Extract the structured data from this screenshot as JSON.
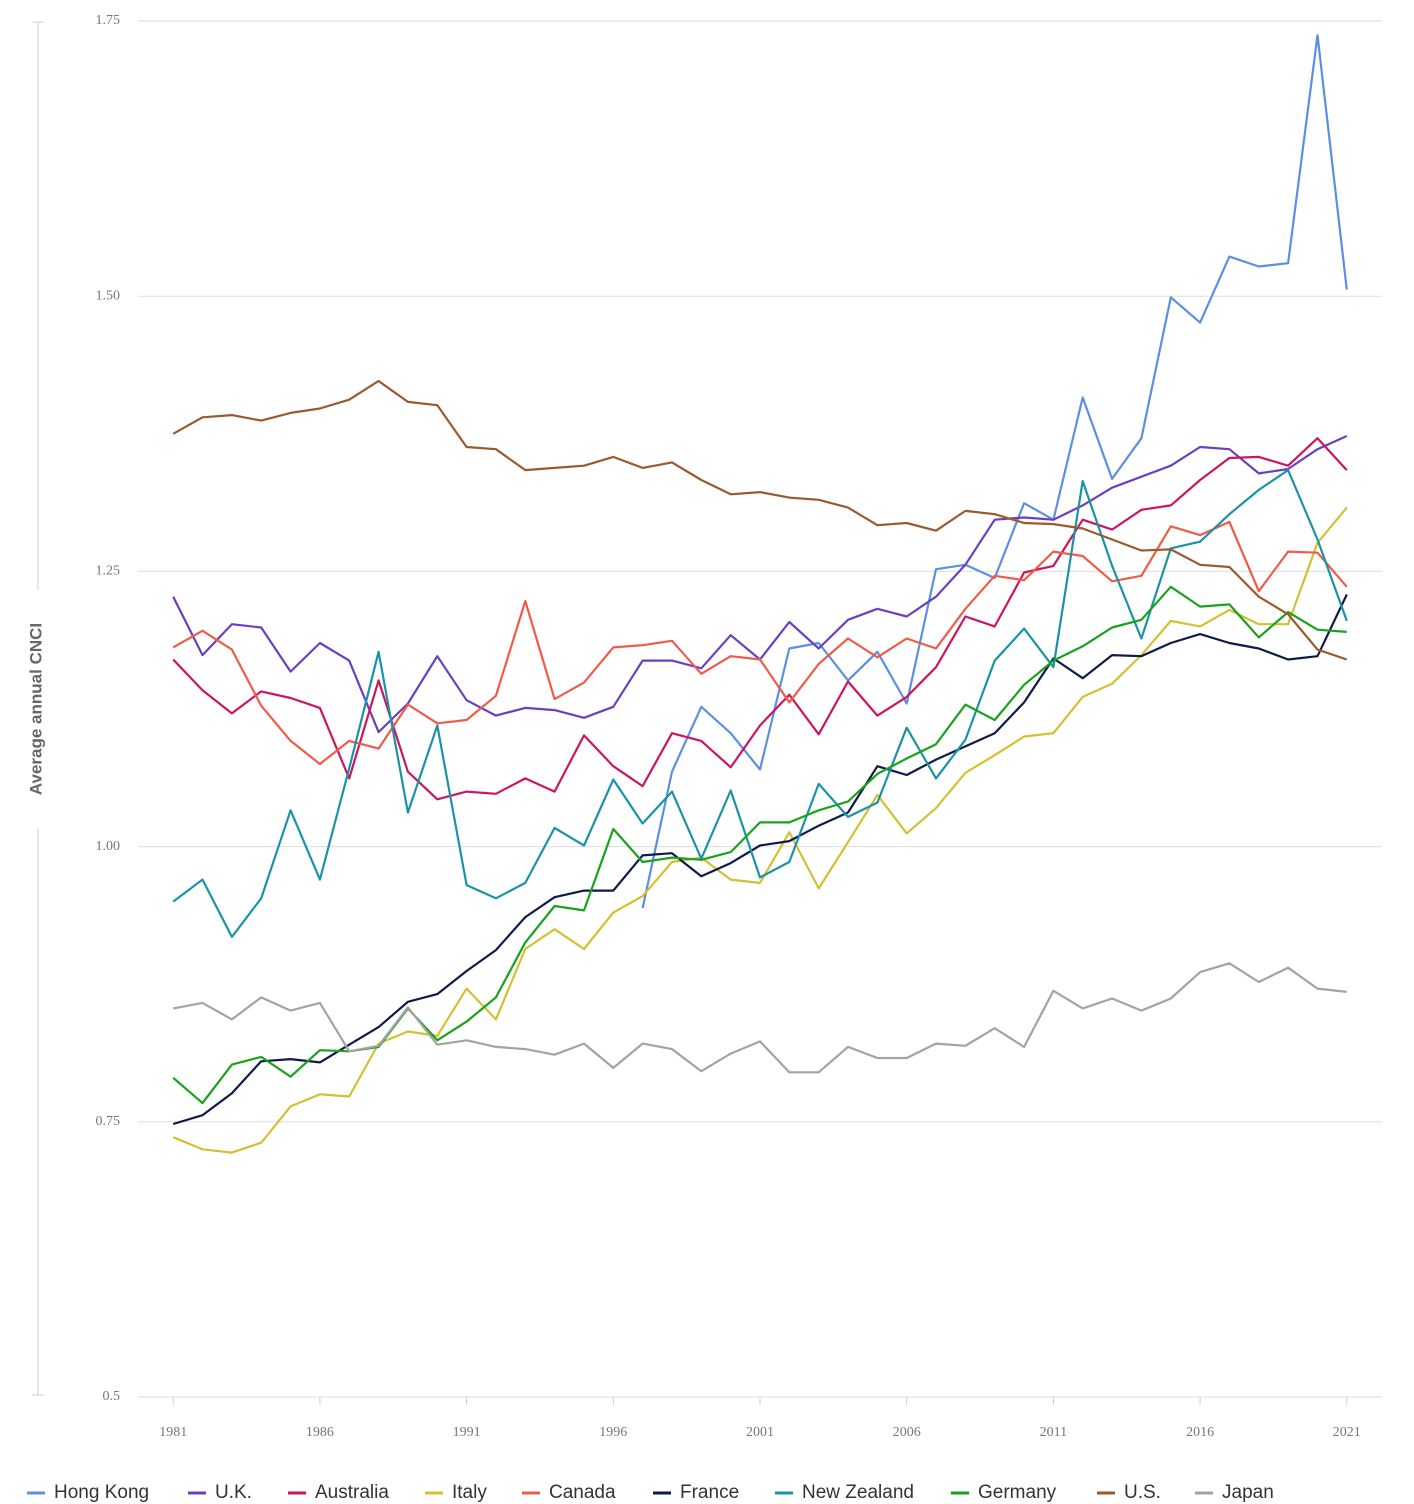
{
  "chart_data": {
    "type": "line",
    "y_label": "Average annual CNCI",
    "x": [
      1981,
      1982,
      1983,
      1984,
      1985,
      1986,
      1987,
      1988,
      1989,
      1990,
      1991,
      1992,
      1993,
      1994,
      1995,
      1996,
      1997,
      1998,
      1999,
      2000,
      2001,
      2002,
      2003,
      2004,
      2005,
      2006,
      2007,
      2008,
      2009,
      2010,
      2011,
      2012,
      2013,
      2014,
      2015,
      2016,
      2017,
      2018,
      2019,
      2020,
      2021
    ],
    "xlim": [
      1979.8,
      2022.2
    ],
    "xticks": [
      1981,
      1986,
      1991,
      1996,
      2001,
      2006,
      2011,
      2016,
      2021
    ],
    "ylim": [
      0.5,
      1.75
    ],
    "yticks": [
      {
        "value": 0.5,
        "label": "0.5"
      },
      {
        "value": 0.75,
        "label": "0.75"
      },
      {
        "value": 1.0,
        "label": "1.00"
      },
      {
        "value": 1.25,
        "label": "1.25"
      },
      {
        "value": 1.5,
        "label": "1.50"
      },
      {
        "value": 1.75,
        "label": "1.75"
      }
    ],
    "grid": true,
    "legend": "bottom",
    "series": [
      {
        "name": "Hong Kong",
        "color": "#5b8fe0",
        "values": [
          null,
          null,
          null,
          null,
          null,
          null,
          null,
          null,
          null,
          null,
          null,
          null,
          null,
          null,
          null,
          null,
          0.944,
          1.068,
          1.127,
          1.103,
          1.07,
          1.18,
          1.185,
          1.151,
          1.177,
          1.13,
          1.252,
          1.256,
          1.244,
          1.312,
          1.297,
          1.408,
          1.334,
          1.371,
          1.499,
          1.476,
          1.536,
          1.527,
          1.53,
          1.737,
          1.506
        ]
      },
      {
        "name": "U.K.",
        "color": "#6a3fc0",
        "values": [
          1.227,
          1.174,
          1.202,
          1.199,
          1.159,
          1.185,
          1.169,
          1.104,
          1.13,
          1.173,
          1.133,
          1.119,
          1.126,
          1.124,
          1.117,
          1.127,
          1.169,
          1.169,
          1.162,
          1.192,
          1.17,
          1.204,
          1.18,
          1.206,
          1.216,
          1.209,
          1.227,
          1.256,
          1.297,
          1.299,
          1.297,
          1.31,
          1.326,
          1.336,
          1.346,
          1.363,
          1.361,
          1.339,
          1.343,
          1.361,
          1.373
        ]
      },
      {
        "name": "Australia",
        "color": "#cc1560",
        "values": [
          1.17,
          1.142,
          1.121,
          1.141,
          1.135,
          1.126,
          1.062,
          1.151,
          1.068,
          1.043,
          1.05,
          1.048,
          1.062,
          1.05,
          1.101,
          1.073,
          1.055,
          1.103,
          1.096,
          1.072,
          1.11,
          1.138,
          1.102,
          1.15,
          1.119,
          1.136,
          1.163,
          1.209,
          1.2,
          1.249,
          1.255,
          1.297,
          1.288,
          1.306,
          1.31,
          1.333,
          1.353,
          1.354,
          1.346,
          1.371,
          1.342
        ]
      },
      {
        "name": "Italy",
        "color": "#d4c030",
        "values": [
          0.736,
          0.725,
          0.722,
          0.731,
          0.764,
          0.775,
          0.773,
          0.821,
          0.832,
          0.828,
          0.871,
          0.843,
          0.907,
          0.925,
          0.907,
          0.94,
          0.955,
          0.986,
          0.99,
          0.97,
          0.967,
          1.013,
          0.962,
          1.004,
          1.047,
          1.012,
          1.035,
          1.067,
          1.083,
          1.1,
          1.103,
          1.136,
          1.148,
          1.174,
          1.205,
          1.2,
          1.215,
          1.202,
          1.202,
          1.276,
          1.308
        ]
      },
      {
        "name": "Canada",
        "color": "#f25a48",
        "values": [
          1.181,
          1.196,
          1.179,
          1.128,
          1.096,
          1.075,
          1.096,
          1.089,
          1.129,
          1.112,
          1.115,
          1.137,
          1.223,
          1.134,
          1.149,
          1.181,
          1.183,
          1.187,
          1.157,
          1.173,
          1.17,
          1.131,
          1.166,
          1.189,
          1.172,
          1.189,
          1.18,
          1.216,
          1.246,
          1.242,
          1.268,
          1.264,
          1.241,
          1.246,
          1.291,
          1.283,
          1.295,
          1.232,
          1.268,
          1.267,
          1.236
        ]
      },
      {
        "name": "France",
        "color": "#0e1a4a",
        "values": [
          0.748,
          0.756,
          0.776,
          0.805,
          0.807,
          0.804,
          0.82,
          0.836,
          0.859,
          0.866,
          0.887,
          0.906,
          0.936,
          0.954,
          0.96,
          0.96,
          0.992,
          0.994,
          0.973,
          0.985,
          1.001,
          1.005,
          1.019,
          1.031,
          1.073,
          1.065,
          1.079,
          1.091,
          1.103,
          1.131,
          1.171,
          1.153,
          1.174,
          1.173,
          1.185,
          1.193,
          1.185,
          1.18,
          1.17,
          1.173,
          1.229
        ]
      },
      {
        "name": "New Zealand",
        "color": "#1a93a8",
        "values": [
          0.95,
          0.97,
          0.918,
          0.953,
          1.033,
          0.97,
          1.071,
          1.177,
          1.031,
          1.11,
          0.965,
          0.953,
          0.967,
          1.017,
          1.001,
          1.061,
          1.021,
          1.05,
          0.989,
          1.051,
          0.972,
          0.986,
          1.057,
          1.027,
          1.04,
          1.108,
          1.062,
          1.097,
          1.169,
          1.198,
          1.163,
          1.332,
          1.255,
          1.189,
          1.271,
          1.277,
          1.302,
          1.324,
          1.342,
          1.279,
          1.205
        ]
      },
      {
        "name": "Germany",
        "color": "#1aa21a",
        "values": [
          0.79,
          0.767,
          0.802,
          0.809,
          0.791,
          0.815,
          0.814,
          0.818,
          0.853,
          0.824,
          0.841,
          0.863,
          0.913,
          0.946,
          0.942,
          1.016,
          0.986,
          0.99,
          0.988,
          0.995,
          1.022,
          1.022,
          1.033,
          1.041,
          1.066,
          1.08,
          1.093,
          1.129,
          1.115,
          1.147,
          1.169,
          1.182,
          1.199,
          1.206,
          1.236,
          1.218,
          1.22,
          1.19,
          1.213,
          1.197,
          1.195
        ]
      },
      {
        "name": "U.S.",
        "color": "#9b5a2e",
        "values": [
          1.375,
          1.39,
          1.392,
          1.387,
          1.394,
          1.398,
          1.406,
          1.423,
          1.404,
          1.401,
          1.363,
          1.361,
          1.342,
          1.344,
          1.346,
          1.354,
          1.344,
          1.349,
          1.333,
          1.32,
          1.322,
          1.317,
          1.315,
          1.308,
          1.292,
          1.294,
          1.287,
          1.305,
          1.302,
          1.294,
          1.293,
          1.289,
          1.279,
          1.269,
          1.27,
          1.256,
          1.254,
          1.227,
          1.211,
          1.179,
          1.17
        ]
      },
      {
        "name": "Japan",
        "color": "#a3a3a3",
        "values": [
          0.853,
          0.858,
          0.843,
          0.863,
          0.851,
          0.858,
          0.814,
          0.819,
          0.854,
          0.82,
          0.824,
          0.818,
          0.816,
          0.811,
          0.821,
          0.799,
          0.821,
          0.816,
          0.796,
          0.812,
          0.823,
          0.795,
          0.795,
          0.818,
          0.808,
          0.808,
          0.821,
          0.819,
          0.835,
          0.818,
          0.869,
          0.853,
          0.862,
          0.851,
          0.862,
          0.886,
          0.894,
          0.877,
          0.89,
          0.871,
          0.868
        ]
      }
    ]
  }
}
